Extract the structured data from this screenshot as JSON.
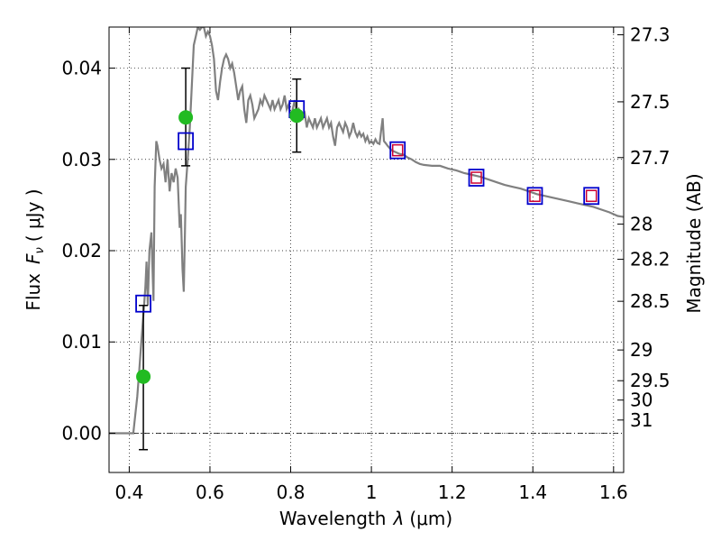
{
  "chart_data": {
    "type": "scatter",
    "xlabel": "Wavelength",
    "xlabel_symbol": "λ",
    "xlabel_unit": "(μm)",
    "ylabel": "Flux",
    "ylabel_symbol": "F",
    "ylabel_subscript": "ν",
    "ylabel_unit": "( μJy )",
    "y2label": "Magnitude (AB)",
    "xlim": [
      0.35,
      1.625
    ],
    "ylim": [
      -0.0043,
      0.0445
    ],
    "grid": true,
    "x_ticks": [
      {
        "v": 0.4,
        "label": "0.4"
      },
      {
        "v": 0.6,
        "label": "0.6"
      },
      {
        "v": 0.8,
        "label": "0.8"
      },
      {
        "v": 1.0,
        "label": "1"
      },
      {
        "v": 1.2,
        "label": "1.2"
      },
      {
        "v": 1.4,
        "label": "1.4"
      },
      {
        "v": 1.6,
        "label": "1.6"
      }
    ],
    "y_ticks": [
      {
        "v": 0.0,
        "label": "0.00"
      },
      {
        "v": 0.01,
        "label": "0.01"
      },
      {
        "v": 0.02,
        "label": "0.02"
      },
      {
        "v": 0.03,
        "label": "0.03"
      },
      {
        "v": 0.04,
        "label": "0.04"
      }
    ],
    "magnitude_ticks": [
      {
        "mag": 27.3,
        "label": "27.3"
      },
      {
        "mag": 27.5,
        "label": "27.5"
      },
      {
        "mag": 27.7,
        "label": "27.7"
      },
      {
        "mag": 28,
        "label": "28"
      },
      {
        "mag": 28.2,
        "label": "28.2"
      },
      {
        "mag": 28.5,
        "label": "28.5"
      },
      {
        "mag": 29,
        "label": "29"
      },
      {
        "mag": 29.5,
        "label": "29.5"
      },
      {
        "mag": 30,
        "label": "30"
      },
      {
        "mag": 31,
        "label": "31"
      }
    ],
    "series": [
      {
        "kind": "model-spectrum",
        "color": "#808080",
        "points": [
          [
            0.35,
            0.0
          ],
          [
            0.4,
            0.0
          ],
          [
            0.41,
            0.0
          ],
          [
            0.415,
            0.002
          ],
          [
            0.42,
            0.004
          ],
          [
            0.425,
            0.007
          ],
          [
            0.43,
            0.01
          ],
          [
            0.435,
            0.013
          ],
          [
            0.44,
            0.016
          ],
          [
            0.443,
            0.0188
          ],
          [
            0.446,
            0.014
          ],
          [
            0.45,
            0.02
          ],
          [
            0.455,
            0.022
          ],
          [
            0.46,
            0.0145
          ],
          [
            0.463,
            0.027
          ],
          [
            0.467,
            0.032
          ],
          [
            0.47,
            0.0315
          ],
          [
            0.475,
            0.03
          ],
          [
            0.48,
            0.029
          ],
          [
            0.485,
            0.0295
          ],
          [
            0.49,
            0.0275
          ],
          [
            0.495,
            0.03
          ],
          [
            0.5,
            0.0265
          ],
          [
            0.505,
            0.0285
          ],
          [
            0.51,
            0.0275
          ],
          [
            0.515,
            0.029
          ],
          [
            0.52,
            0.028
          ],
          [
            0.525,
            0.0225
          ],
          [
            0.528,
            0.024
          ],
          [
            0.532,
            0.018
          ],
          [
            0.535,
            0.0155
          ],
          [
            0.538,
            0.022
          ],
          [
            0.54,
            0.027
          ],
          [
            0.545,
            0.03
          ],
          [
            0.55,
            0.0335
          ],
          [
            0.555,
            0.038
          ],
          [
            0.56,
            0.0425
          ],
          [
            0.565,
            0.0435
          ],
          [
            0.57,
            0.0445
          ],
          [
            0.575,
            0.0442
          ],
          [
            0.58,
            0.0445
          ],
          [
            0.585,
            0.0445
          ],
          [
            0.59,
            0.0435
          ],
          [
            0.595,
            0.044
          ],
          [
            0.6,
            0.0435
          ],
          [
            0.605,
            0.0425
          ],
          [
            0.61,
            0.041
          ],
          [
            0.615,
            0.0375
          ],
          [
            0.62,
            0.0365
          ],
          [
            0.625,
            0.0385
          ],
          [
            0.63,
            0.04
          ],
          [
            0.635,
            0.041
          ],
          [
            0.64,
            0.0415
          ],
          [
            0.645,
            0.041
          ],
          [
            0.65,
            0.04
          ],
          [
            0.655,
            0.0405
          ],
          [
            0.66,
            0.0395
          ],
          [
            0.665,
            0.038
          ],
          [
            0.67,
            0.0365
          ],
          [
            0.675,
            0.0375
          ],
          [
            0.68,
            0.038
          ],
          [
            0.685,
            0.0355
          ],
          [
            0.69,
            0.034
          ],
          [
            0.695,
            0.0365
          ],
          [
            0.7,
            0.037
          ],
          [
            0.705,
            0.036
          ],
          [
            0.71,
            0.0345
          ],
          [
            0.715,
            0.035
          ],
          [
            0.72,
            0.0355
          ],
          [
            0.725,
            0.0365
          ],
          [
            0.73,
            0.036
          ],
          [
            0.735,
            0.037
          ],
          [
            0.74,
            0.0365
          ],
          [
            0.745,
            0.036
          ],
          [
            0.75,
            0.0355
          ],
          [
            0.755,
            0.0365
          ],
          [
            0.76,
            0.0355
          ],
          [
            0.765,
            0.036
          ],
          [
            0.77,
            0.0365
          ],
          [
            0.775,
            0.0355
          ],
          [
            0.78,
            0.036
          ],
          [
            0.785,
            0.037
          ],
          [
            0.79,
            0.0355
          ],
          [
            0.795,
            0.036
          ],
          [
            0.8,
            0.0345
          ],
          [
            0.805,
            0.0355
          ],
          [
            0.81,
            0.0365
          ],
          [
            0.815,
            0.035
          ],
          [
            0.82,
            0.0355
          ],
          [
            0.825,
            0.035
          ],
          [
            0.83,
            0.0345
          ],
          [
            0.835,
            0.035
          ],
          [
            0.84,
            0.0335
          ],
          [
            0.845,
            0.0345
          ],
          [
            0.85,
            0.034
          ],
          [
            0.855,
            0.0335
          ],
          [
            0.86,
            0.0345
          ],
          [
            0.865,
            0.0335
          ],
          [
            0.87,
            0.034
          ],
          [
            0.875,
            0.0345
          ],
          [
            0.88,
            0.0335
          ],
          [
            0.885,
            0.034
          ],
          [
            0.89,
            0.0345
          ],
          [
            0.895,
            0.0335
          ],
          [
            0.9,
            0.034
          ],
          [
            0.905,
            0.0325
          ],
          [
            0.91,
            0.0315
          ],
          [
            0.915,
            0.0335
          ],
          [
            0.92,
            0.034
          ],
          [
            0.925,
            0.0335
          ],
          [
            0.93,
            0.033
          ],
          [
            0.935,
            0.034
          ],
          [
            0.94,
            0.0335
          ],
          [
            0.945,
            0.0325
          ],
          [
            0.95,
            0.033
          ],
          [
            0.955,
            0.034
          ],
          [
            0.96,
            0.033
          ],
          [
            0.965,
            0.0325
          ],
          [
            0.97,
            0.033
          ],
          [
            0.975,
            0.0325
          ],
          [
            0.98,
            0.0328
          ],
          [
            0.985,
            0.032
          ],
          [
            0.99,
            0.0325
          ],
          [
            0.995,
            0.0318
          ],
          [
            1.0,
            0.032
          ],
          [
            1.005,
            0.0317
          ],
          [
            1.01,
            0.0322
          ],
          [
            1.015,
            0.0318
          ],
          [
            1.02,
            0.0317
          ],
          [
            1.025,
            0.0335
          ],
          [
            1.028,
            0.0345
          ],
          [
            1.031,
            0.032
          ],
          [
            1.035,
            0.0318
          ],
          [
            1.04,
            0.0315
          ],
          [
            1.05,
            0.031
          ],
          [
            1.06,
            0.0308
          ],
          [
            1.07,
            0.0306
          ],
          [
            1.08,
            0.0305
          ],
          [
            1.09,
            0.0302
          ],
          [
            1.1,
            0.03
          ],
          [
            1.11,
            0.0297
          ],
          [
            1.12,
            0.0295
          ],
          [
            1.13,
            0.0294
          ],
          [
            1.15,
            0.0293
          ],
          [
            1.17,
            0.0293
          ],
          [
            1.19,
            0.029
          ],
          [
            1.21,
            0.0288
          ],
          [
            1.23,
            0.0285
          ],
          [
            1.25,
            0.0283
          ],
          [
            1.27,
            0.0281
          ],
          [
            1.29,
            0.0278
          ],
          [
            1.31,
            0.0275
          ],
          [
            1.33,
            0.0272
          ],
          [
            1.35,
            0.027
          ],
          [
            1.37,
            0.0268
          ],
          [
            1.39,
            0.0265
          ],
          [
            1.41,
            0.0262
          ],
          [
            1.43,
            0.026
          ],
          [
            1.45,
            0.0258
          ],
          [
            1.47,
            0.0256
          ],
          [
            1.49,
            0.0254
          ],
          [
            1.51,
            0.0252
          ],
          [
            1.53,
            0.025
          ],
          [
            1.55,
            0.0248
          ],
          [
            1.57,
            0.0245
          ],
          [
            1.59,
            0.0242
          ],
          [
            1.61,
            0.0238
          ],
          [
            1.625,
            0.0237
          ]
        ]
      },
      {
        "kind": "model-photometry",
        "marker": "open-square",
        "color": "#0000cc",
        "points": [
          [
            0.435,
            0.0142
          ],
          [
            0.54,
            0.032
          ],
          [
            0.815,
            0.0355
          ],
          [
            1.065,
            0.031
          ],
          [
            1.26,
            0.028
          ],
          [
            1.405,
            0.026
          ],
          [
            1.545,
            0.026
          ]
        ]
      },
      {
        "kind": "photometry",
        "marker": "open-square",
        "color": "#cc0033",
        "points": [
          [
            1.065,
            0.031
          ],
          [
            1.26,
            0.028
          ],
          [
            1.405,
            0.026
          ],
          [
            1.545,
            0.026
          ]
        ]
      },
      {
        "kind": "photometry-detections",
        "marker": "filled-circle",
        "color": "#22bb22",
        "points": [
          {
            "x": 0.435,
            "y": 0.0062,
            "err_low": -0.0018,
            "err_high": 0.014
          },
          {
            "x": 0.54,
            "y": 0.0346,
            "err_low": 0.0293,
            "err_high": 0.04
          },
          {
            "x": 0.815,
            "y": 0.0348,
            "err_low": 0.0308,
            "err_high": 0.0388
          }
        ]
      }
    ]
  }
}
